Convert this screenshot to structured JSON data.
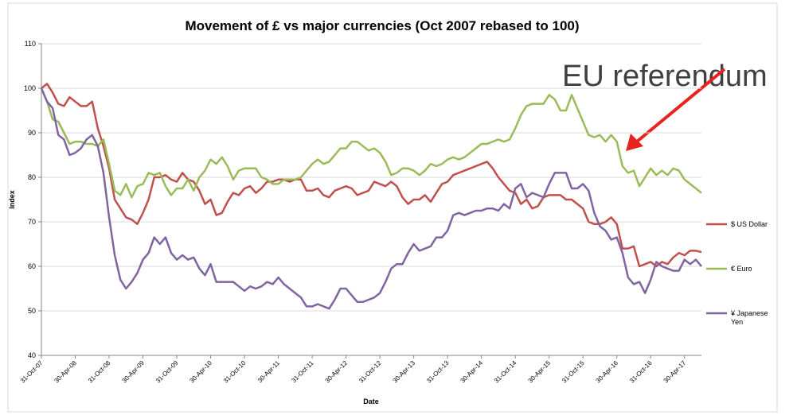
{
  "chart_data": {
    "type": "line",
    "title": "Movement of £ vs major currencies (Oct 2007 rebased to 100)",
    "x_label": "Date",
    "y_label": "Index",
    "annotation": "EU referendum",
    "categories": [
      "31-Oct-07",
      null,
      null,
      null,
      null,
      null,
      "30-Apr-08",
      null,
      null,
      null,
      null,
      null,
      "31-Oct-08",
      null,
      null,
      null,
      null,
      null,
      "30-Apr-09",
      null,
      null,
      null,
      null,
      null,
      "31-Oct-09",
      null,
      null,
      null,
      null,
      null,
      "30-Apr-10",
      null,
      null,
      null,
      null,
      null,
      "31-Oct-10",
      null,
      null,
      null,
      null,
      null,
      "30-Apr-11",
      null,
      null,
      null,
      null,
      null,
      "31-Oct-11",
      null,
      null,
      null,
      null,
      null,
      "30-Apr-12",
      null,
      null,
      null,
      null,
      null,
      "31-Oct-12",
      null,
      null,
      null,
      null,
      null,
      "30-Apr-13",
      null,
      null,
      null,
      null,
      null,
      "31-Oct-13",
      null,
      null,
      null,
      null,
      null,
      "30-Apr-14",
      null,
      null,
      null,
      null,
      null,
      "31-Oct-14",
      null,
      null,
      null,
      null,
      null,
      "30-Apr-15",
      null,
      null,
      null,
      null,
      null,
      "31-Oct-15",
      null,
      null,
      null,
      null,
      null,
      "30-Apr-16",
      null,
      null,
      null,
      null,
      null,
      "31-Oct-16",
      null,
      null,
      null,
      null,
      null,
      "30-Apr-17",
      null,
      null,
      null
    ],
    "series": [
      {
        "name": "$ US Dollar",
        "color": "#c0504d",
        "values": [
          100,
          101,
          99,
          96.5,
          96,
          98,
          97,
          96,
          96,
          97,
          91,
          87,
          82,
          75,
          73,
          71,
          70.5,
          69.5,
          72,
          75,
          80,
          80,
          80.5,
          79.5,
          79,
          81,
          79.5,
          79,
          77,
          74,
          75,
          71.5,
          72,
          74.5,
          76.5,
          76,
          77.5,
          78,
          76.5,
          77.5,
          79,
          79,
          79.5,
          79.5,
          79,
          79.5,
          79.5,
          77,
          77,
          77.5,
          76,
          75.5,
          77,
          77.5,
          78,
          77.5,
          76,
          76.5,
          77,
          79,
          78.5,
          78,
          79,
          78,
          75.5,
          74,
          75,
          75,
          76,
          74.5,
          76.5,
          78.5,
          79,
          80.5,
          81,
          81.5,
          82,
          82.5,
          83,
          83.5,
          82,
          80,
          78.5,
          77,
          76.5,
          74,
          75,
          73,
          73.5,
          75.5,
          76,
          76,
          76,
          75,
          75,
          74,
          73,
          70,
          69.5,
          69.5,
          70,
          71,
          69.5,
          64,
          64,
          64.5,
          60,
          60.5,
          61,
          60,
          61,
          60.5,
          62,
          63,
          62.5,
          63.5,
          63.5,
          63.2
        ]
      },
      {
        "name": "€ Euro",
        "color": "#9bbb59",
        "values": [
          100,
          97,
          93,
          92.5,
          90,
          87.5,
          88,
          88,
          87.5,
          87.5,
          87,
          88.5,
          83,
          77,
          76,
          78.5,
          75.5,
          78,
          78.5,
          81,
          80.5,
          81,
          78,
          76,
          77.5,
          77.5,
          79.5,
          77,
          80,
          81.5,
          84,
          83,
          84.5,
          82.5,
          79.5,
          81.5,
          82,
          82,
          82,
          80,
          79.5,
          78.5,
          78.5,
          79.5,
          79.5,
          79.5,
          80,
          81.5,
          83,
          84,
          83,
          83.5,
          85,
          86.5,
          86.5,
          88,
          88,
          87,
          86,
          86.5,
          85.5,
          83.5,
          80.5,
          81,
          82,
          82,
          81.5,
          80.5,
          81.5,
          83,
          82.5,
          83,
          84,
          84.5,
          84,
          84.5,
          85.5,
          86.5,
          87.5,
          87.5,
          88,
          88.5,
          88,
          88.5,
          91,
          94,
          96,
          96.5,
          96.5,
          96.5,
          98.5,
          97.5,
          95,
          95,
          98.5,
          95.5,
          92.5,
          89.5,
          89,
          89.5,
          88,
          89.5,
          88,
          82.5,
          81,
          81.5,
          78,
          80,
          82,
          80.5,
          81.5,
          80.5,
          82,
          81.5,
          79.5,
          78.5,
          77.5,
          76.5
        ]
      },
      {
        "name": "¥ Japanese Yen",
        "color": "#8064a2",
        "values": [
          100,
          97,
          95.5,
          89.5,
          88.5,
          85,
          85.5,
          86.5,
          88.5,
          89.5,
          87,
          81,
          71,
          62.5,
          57,
          55,
          56.5,
          58.5,
          61.5,
          63,
          66.5,
          65,
          66.5,
          63,
          61.5,
          62.5,
          61.5,
          62,
          59.5,
          58,
          60.5,
          56.5,
          56.5,
          56.5,
          56.5,
          55.5,
          54.5,
          55.5,
          55,
          55.5,
          56.5,
          56,
          57.5,
          56,
          55,
          54,
          53,
          51,
          51,
          51.5,
          51,
          50.5,
          52.5,
          55,
          55,
          53.5,
          52,
          52,
          52.5,
          53,
          54,
          56.5,
          59.5,
          60.5,
          60.5,
          63,
          65,
          63.5,
          64,
          64.5,
          66.5,
          66.5,
          68,
          71.5,
          72,
          71.5,
          72,
          72.5,
          72.5,
          73,
          73,
          72.5,
          74,
          73,
          77.5,
          78.5,
          75.5,
          76.5,
          76,
          75.5,
          78.5,
          81,
          81,
          81,
          77.5,
          77.5,
          78.5,
          77,
          72,
          69,
          68,
          66,
          66.5,
          63,
          57.5,
          56,
          56.5,
          54,
          57,
          61,
          60,
          59.5,
          59,
          59,
          61.5,
          60.5,
          61.5,
          60
        ]
      }
    ],
    "ylim": [
      40,
      110
    ],
    "yticks": [
      40,
      50,
      60,
      70,
      80,
      90,
      100,
      110
    ],
    "grid": true,
    "legend": "right"
  }
}
